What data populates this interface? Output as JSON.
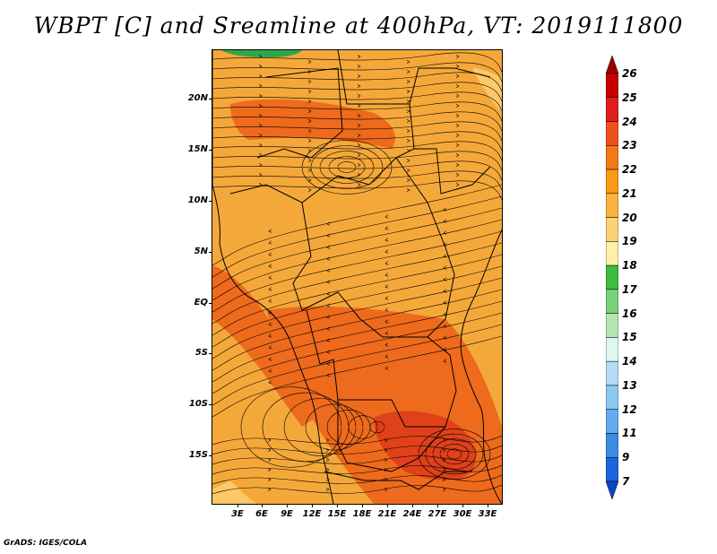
{
  "title": "WBPT [C] and Sreamline at 400hPa, VT: 2019111800",
  "credit": "GrADS: IGES/COLA",
  "latitude_labels": [
    "20N",
    "15N",
    "10N",
    "5N",
    "EQ",
    "5S",
    "10S",
    "15S"
  ],
  "longitude_labels": [
    "3E",
    "6E",
    "9E",
    "12E",
    "15E",
    "18E",
    "21E",
    "24E",
    "27E",
    "30E",
    "33E"
  ],
  "colorbar": {
    "labels": [
      "26",
      "25",
      "24",
      "23",
      "22",
      "21",
      "20",
      "19",
      "18",
      "17",
      "16",
      "15",
      "14",
      "13",
      "12",
      "11",
      "9",
      "7"
    ],
    "colors": [
      "#a00000",
      "#c80000",
      "#e01e1e",
      "#f0501e",
      "#f57814",
      "#fa9b14",
      "#fab43c",
      "#fad278",
      "#fff0aa",
      "#3cbe3c",
      "#78d278",
      "#b4e6b4",
      "#e1f5f5",
      "#b4dcf5",
      "#8cc8f0",
      "#64aaf0",
      "#3c8ce6",
      "#1e64dc",
      "#0a46c8"
    ]
  },
  "map": {
    "background": "#f5a83a",
    "warm_region": "#ee6a1c",
    "hot_region": "#e0401a",
    "cool_region": "#fcc868",
    "green_region": "#2fa64a"
  }
}
